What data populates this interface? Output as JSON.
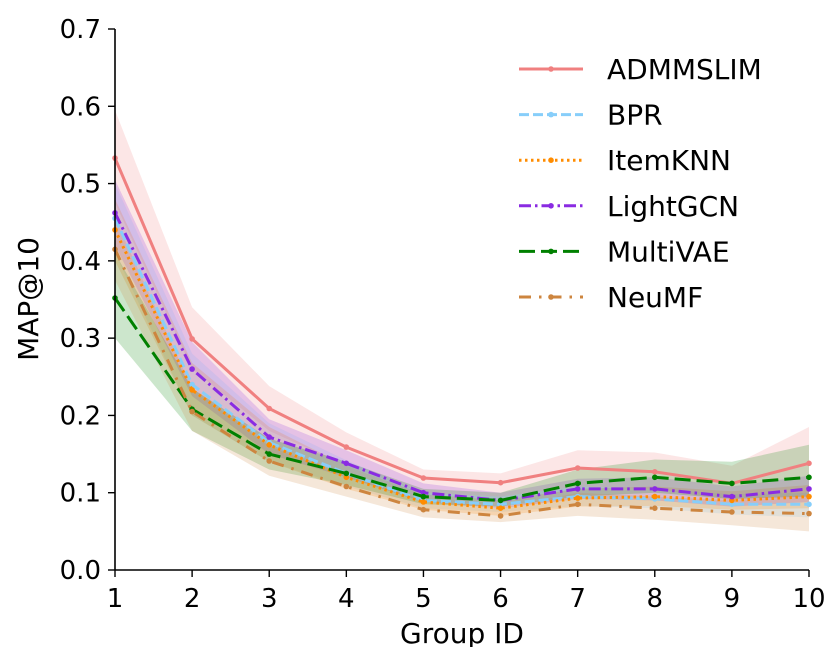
{
  "chart_data": {
    "type": "line",
    "title": "",
    "xlabel": "Group ID",
    "ylabel": "MAP@10",
    "x": [
      1,
      2,
      3,
      4,
      5,
      6,
      7,
      8,
      9,
      10
    ],
    "xlim": [
      1,
      10
    ],
    "ylim": [
      0.0,
      0.7
    ],
    "xticks": [
      "1",
      "2",
      "3",
      "4",
      "5",
      "6",
      "7",
      "8",
      "9",
      "10"
    ],
    "yticks": [
      "0.0",
      "0.1",
      "0.2",
      "0.3",
      "0.4",
      "0.5",
      "0.6",
      "0.7"
    ],
    "grid": false,
    "legend_position": "top-right",
    "series": [
      {
        "name": "ADMMSLIM",
        "color": "#F08080",
        "style": "solid",
        "values": [
          0.533,
          0.299,
          0.209,
          0.159,
          0.119,
          0.113,
          0.132,
          0.127,
          0.112,
          0.138
        ],
        "lower": [
          0.475,
          0.26,
          0.18,
          0.135,
          0.1,
          0.095,
          0.108,
          0.105,
          0.09,
          0.095
        ],
        "upper": [
          0.595,
          0.34,
          0.238,
          0.178,
          0.13,
          0.125,
          0.155,
          0.152,
          0.135,
          0.185
        ]
      },
      {
        "name": "BPR",
        "color": "#87CEFA",
        "style": "dashed",
        "values": [
          0.455,
          0.24,
          0.165,
          0.125,
          0.09,
          0.085,
          0.095,
          0.092,
          0.085,
          0.085
        ],
        "lower": [
          0.41,
          0.2,
          0.14,
          0.108,
          0.08,
          0.075,
          0.083,
          0.08,
          0.072,
          0.068
        ],
        "upper": [
          0.5,
          0.28,
          0.19,
          0.142,
          0.1,
          0.095,
          0.108,
          0.105,
          0.098,
          0.1
        ]
      },
      {
        "name": "ItemKNN",
        "color": "#FF8C00",
        "style": "dotted",
        "values": [
          0.44,
          0.233,
          0.162,
          0.12,
          0.088,
          0.08,
          0.093,
          0.095,
          0.09,
          0.095
        ],
        "lower": [
          0.4,
          0.2,
          0.14,
          0.105,
          0.078,
          0.07,
          0.082,
          0.083,
          0.078,
          0.08
        ],
        "upper": [
          0.48,
          0.268,
          0.185,
          0.135,
          0.098,
          0.09,
          0.105,
          0.108,
          0.102,
          0.11
        ]
      },
      {
        "name": "LightGCN",
        "color": "#8A2BE2",
        "style": "dashdot",
        "values": [
          0.462,
          0.26,
          0.172,
          0.138,
          0.1,
          0.09,
          0.105,
          0.105,
          0.095,
          0.105
        ],
        "lower": [
          0.42,
          0.225,
          0.15,
          0.12,
          0.088,
          0.08,
          0.092,
          0.09,
          0.082,
          0.088
        ],
        "upper": [
          0.505,
          0.295,
          0.195,
          0.155,
          0.112,
          0.1,
          0.118,
          0.12,
          0.108,
          0.122
        ]
      },
      {
        "name": "MultiVAE",
        "color": "#008000",
        "style": "longdash",
        "values": [
          0.352,
          0.208,
          0.15,
          0.125,
          0.095,
          0.09,
          0.112,
          0.12,
          0.112,
          0.12
        ],
        "lower": [
          0.3,
          0.18,
          0.13,
          0.11,
          0.085,
          0.082,
          0.095,
          0.1,
          0.092,
          0.095
        ],
        "upper": [
          0.41,
          0.235,
          0.17,
          0.14,
          0.105,
          0.1,
          0.13,
          0.143,
          0.14,
          0.162
        ]
      },
      {
        "name": "NeuMF",
        "color": "#CD853F",
        "style": "dashdotsparse",
        "values": [
          0.415,
          0.205,
          0.141,
          0.108,
          0.078,
          0.07,
          0.085,
          0.08,
          0.075,
          0.073
        ],
        "lower": [
          0.375,
          0.18,
          0.122,
          0.095,
          0.068,
          0.062,
          0.07,
          0.065,
          0.058,
          0.05
        ],
        "upper": [
          0.455,
          0.235,
          0.16,
          0.122,
          0.09,
          0.08,
          0.1,
          0.095,
          0.09,
          0.095
        ]
      }
    ]
  }
}
